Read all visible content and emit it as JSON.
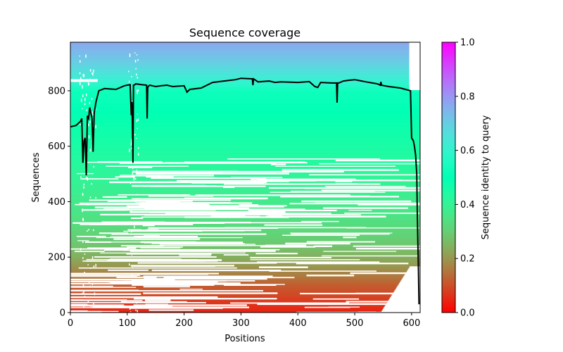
{
  "chart_data": {
    "type": "heatmap",
    "title": "Sequence coverage",
    "xlabel": "Positions",
    "ylabel": "Sequences",
    "xlim": [
      0,
      615
    ],
    "ylim": [
      0,
      975
    ],
    "x_ticks": [
      "0",
      "100",
      "200",
      "300",
      "400",
      "500",
      "600"
    ],
    "y_ticks": [
      "0",
      "200",
      "400",
      "600",
      "800"
    ],
    "colorbar": {
      "label": "Sequence identity to query",
      "range": [
        0.0,
        1.0
      ],
      "ticks": [
        "0.0",
        "0.2",
        "0.4",
        "0.6",
        "0.8",
        "1.0"
      ],
      "colormap": "rainbow_r"
    },
    "identity_by_sequence_index": {
      "y": [
        0,
        50,
        100,
        150,
        200,
        250,
        300,
        350,
        400,
        450,
        500,
        550,
        600,
        650,
        700,
        750,
        800,
        820,
        850,
        900,
        950,
        975
      ],
      "identity": [
        0.04,
        0.08,
        0.12,
        0.18,
        0.24,
        0.29,
        0.32,
        0.35,
        0.37,
        0.39,
        0.41,
        0.43,
        0.45,
        0.47,
        0.49,
        0.51,
        0.53,
        0.58,
        0.63,
        0.7,
        0.75,
        0.77
      ]
    },
    "series": [
      {
        "x": [
          0,
          10,
          18,
          20,
          22,
          24,
          26,
          28,
          30,
          32,
          34,
          36,
          38,
          40,
          42,
          45,
          50,
          60,
          80,
          95,
          100,
          105,
          107,
          108,
          109,
          110,
          111,
          112,
          115,
          125,
          134,
          135,
          136,
          137,
          138,
          140,
          150,
          160,
          170,
          180,
          200,
          205,
          210,
          230,
          250,
          270,
          290,
          300,
          320,
          321,
          322,
          330,
          350,
          360,
          370,
          400,
          420,
          430,
          435,
          440,
          460,
          468,
          469,
          470,
          471,
          472,
          480,
          490,
          500,
          520,
          540,
          545,
          546,
          547,
          560,
          580,
          598,
          600,
          603,
          605,
          607,
          609,
          610,
          611,
          612,
          613
        ],
        "y": [
          670,
          675,
          690,
          700,
          540,
          620,
          630,
          495,
          710,
          700,
          740,
          720,
          700,
          580,
          720,
          760,
          800,
          808,
          805,
          818,
          820,
          822,
          712,
          760,
          680,
          540,
          820,
          820,
          825,
          822,
          820,
          700,
          812,
          815,
          818,
          820,
          815,
          818,
          820,
          815,
          818,
          795,
          805,
          810,
          830,
          835,
          840,
          845,
          843,
          820,
          843,
          832,
          835,
          830,
          832,
          830,
          833,
          815,
          812,
          830,
          828,
          828,
          757,
          828,
          828,
          828,
          835,
          838,
          840,
          832,
          825,
          820,
          832,
          820,
          815,
          810,
          800,
          630,
          620,
          600,
          570,
          500,
          350,
          250,
          150,
          30
        ]
      }
    ],
    "colors": {
      "curve": "#000000",
      "background": "#ffffff"
    }
  }
}
